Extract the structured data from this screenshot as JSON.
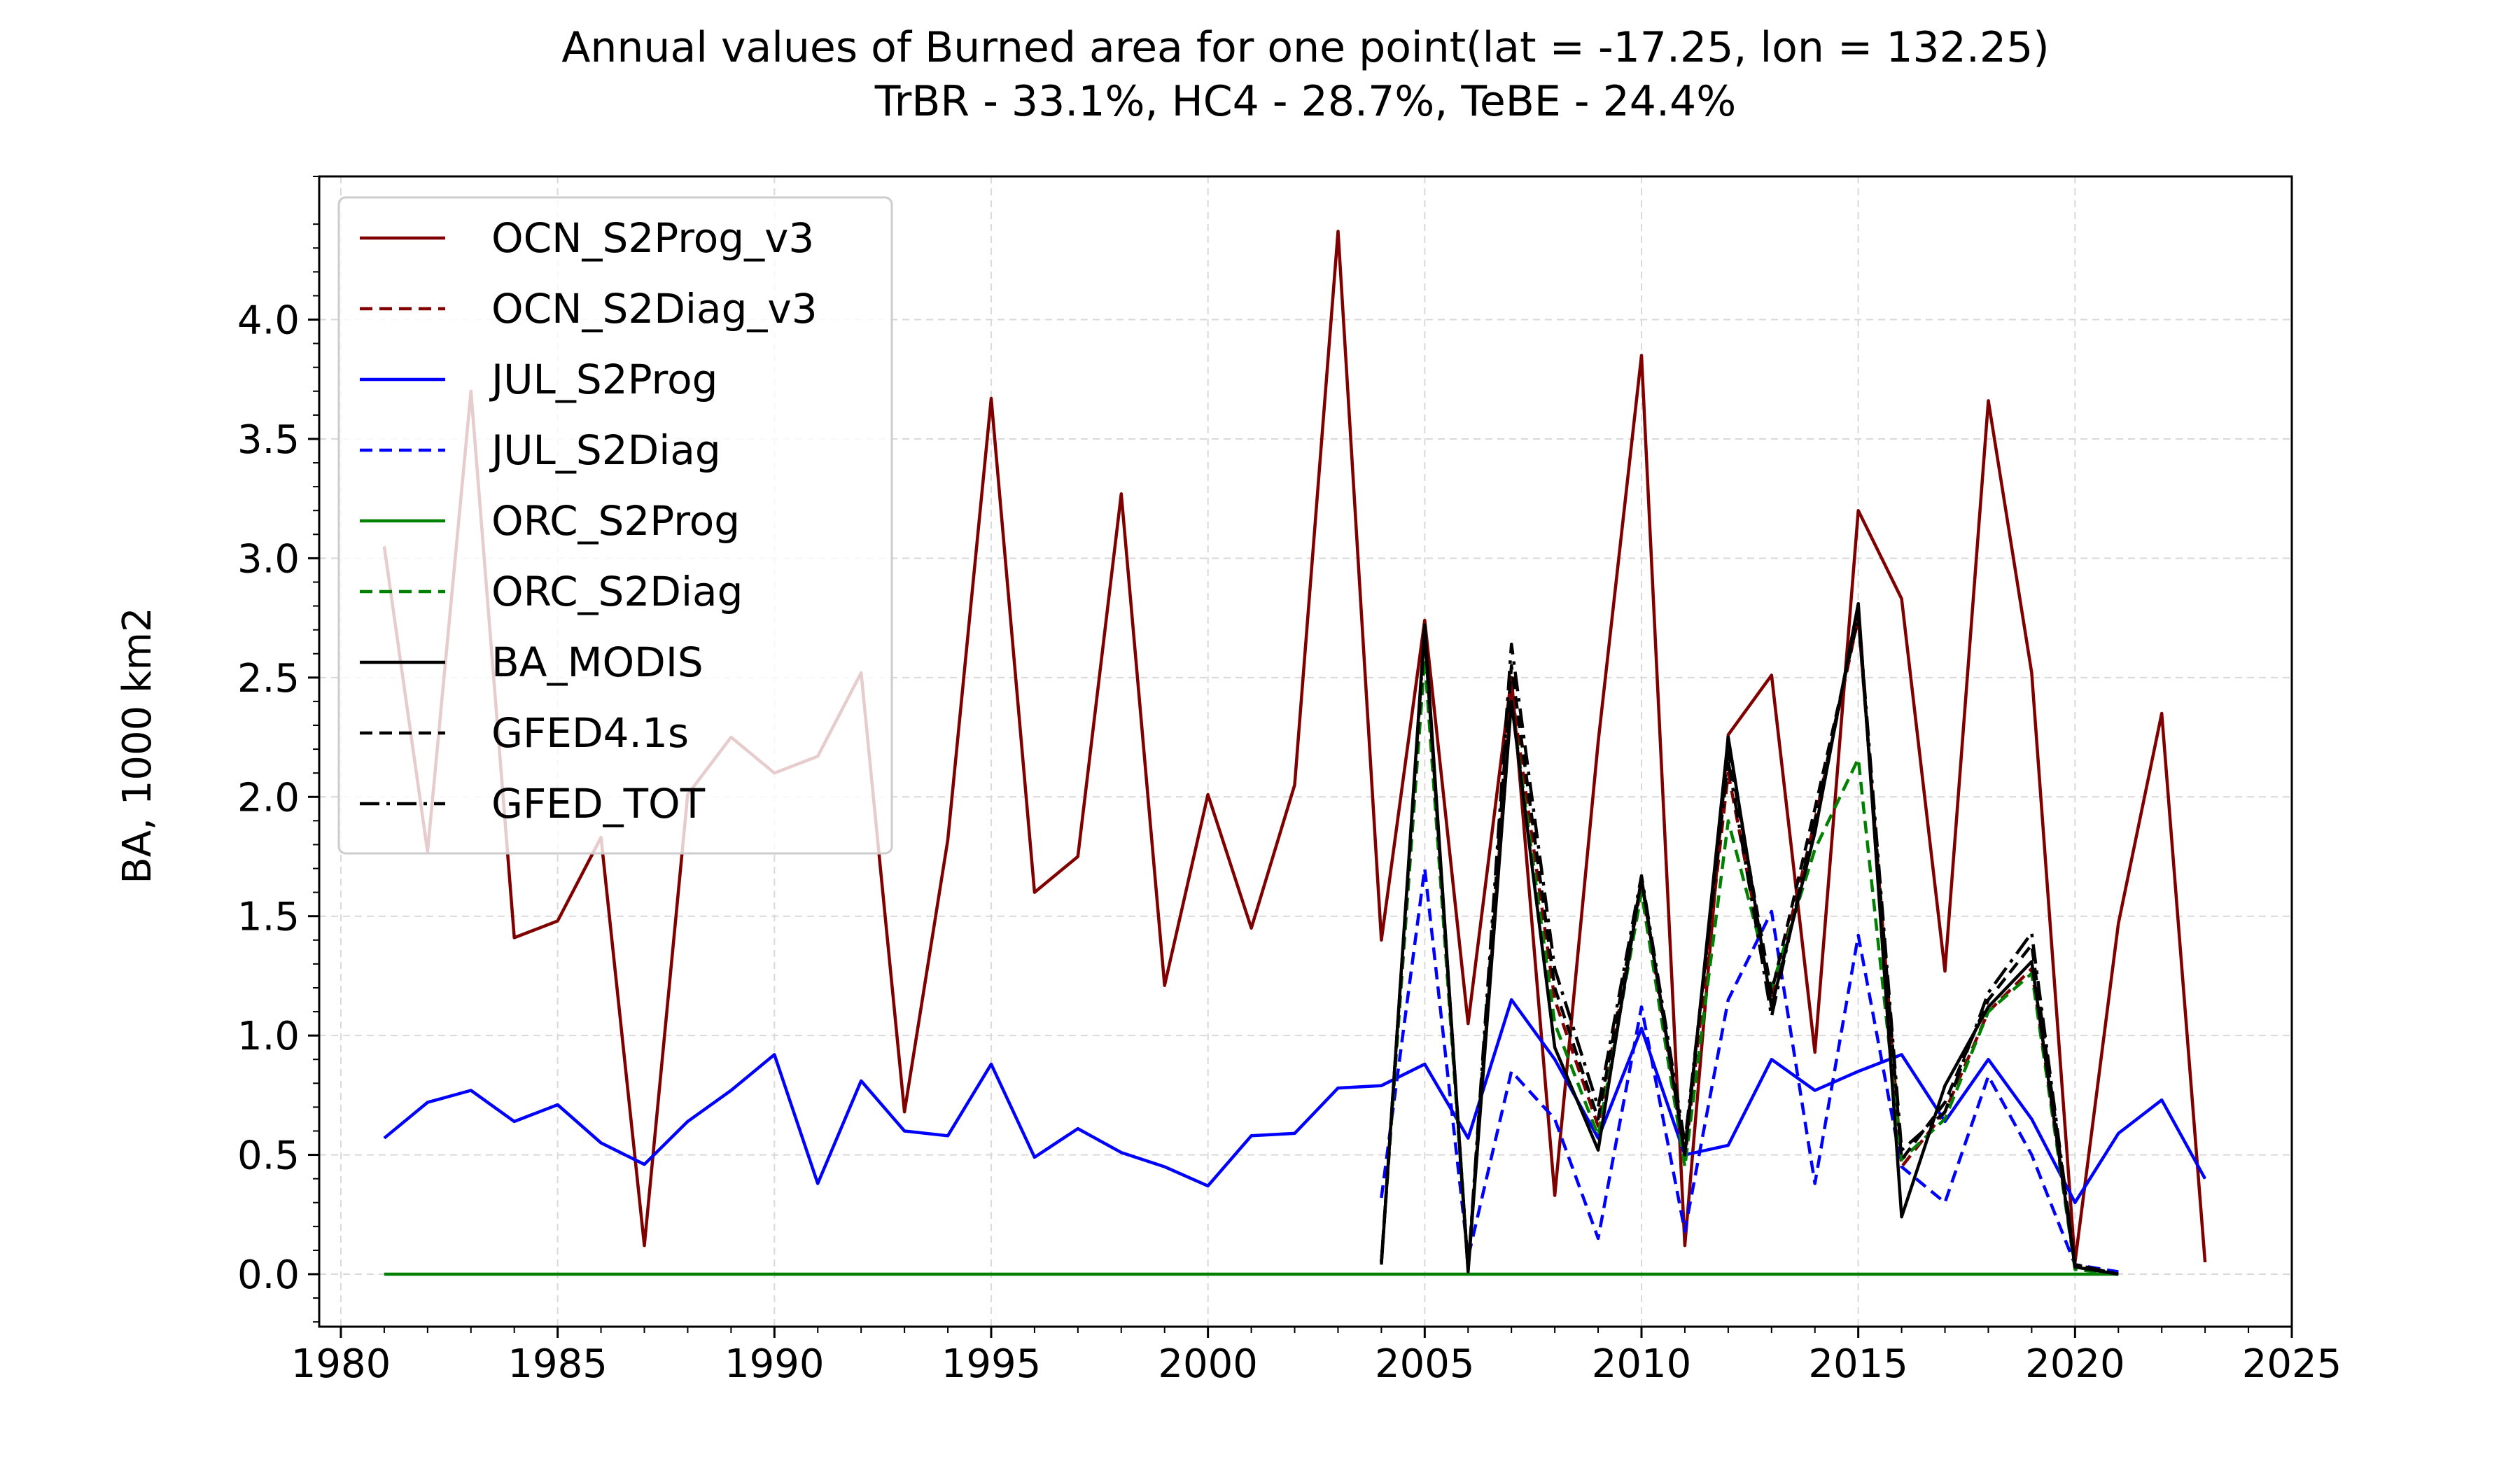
{
  "chart_data": {
    "type": "line",
    "title": "Annual values of Burned area for one point(lat = -17.25, lon = 132.25)",
    "subtitle": "TrBR - 33.1%, HC4  - 28.7%, TeBE - 24.4%",
    "xlabel": "",
    "ylabel": "BA, 1000 km2",
    "xlim": [
      1979.5,
      2025
    ],
    "ylim": [
      -0.22,
      4.6
    ],
    "xticks": [
      1980,
      1985,
      1990,
      1995,
      2000,
      2005,
      2010,
      2015,
      2020,
      2025
    ],
    "xtick_labels": [
      "1980",
      "1985",
      "1990",
      "1995",
      "2000",
      "2005",
      "2010",
      "2015",
      "2020",
      "2025"
    ],
    "yticks": [
      0.0,
      0.5,
      1.0,
      1.5,
      2.0,
      2.5,
      3.0,
      3.5,
      4.0
    ],
    "ytick_labels": [
      "0.0",
      "0.5",
      "1.0",
      "1.5",
      "2.0",
      "2.5",
      "3.0",
      "3.5",
      "4.0"
    ],
    "grid": true,
    "legend_position": "top-left",
    "series": [
      {
        "name": "OCN_S2Prog_v3",
        "color": "#800000",
        "style": "solid",
        "x": [
          1981,
          1982,
          1983,
          1984,
          1985,
          1986,
          1987,
          1988,
          1989,
          1990,
          1991,
          1992,
          1993,
          1994,
          1995,
          1996,
          1997,
          1998,
          1999,
          2000,
          2001,
          2002,
          2003,
          2004,
          2005,
          2006,
          2007,
          2008,
          2009,
          2010,
          2011,
          2012,
          2013,
          2014,
          2015,
          2016,
          2017,
          2018,
          2019,
          2020,
          2021,
          2022,
          2023
        ],
        "y": [
          3.05,
          1.77,
          3.7,
          1.41,
          1.48,
          1.83,
          0.12,
          2.01,
          2.25,
          2.1,
          2.17,
          2.52,
          0.68,
          1.82,
          3.67,
          1.6,
          1.75,
          3.27,
          1.21,
          2.01,
          1.45,
          2.05,
          4.37,
          1.4,
          2.74,
          1.05,
          2.5,
          0.33,
          2.23,
          3.85,
          0.12,
          2.26,
          2.51,
          0.93,
          3.2,
          2.83,
          1.27,
          3.66,
          2.52,
          0.05,
          1.47,
          2.35,
          0.05
        ]
      },
      {
        "name": "OCN_S2Diag_v3",
        "color": "#800000",
        "style": "dashed",
        "x": [
          2004,
          2005,
          2006,
          2007,
          2008,
          2009,
          2010,
          2011,
          2012,
          2013,
          2014,
          2015,
          2016,
          2017,
          2018,
          2019,
          2020,
          2021
        ],
        "y": [
          0.05,
          2.62,
          0.02,
          2.45,
          1.15,
          0.62,
          1.63,
          0.48,
          2.1,
          1.15,
          1.9,
          2.75,
          0.45,
          0.68,
          1.1,
          1.28,
          0.03,
          0.0
        ]
      },
      {
        "name": "JUL_S2Prog",
        "color": "#0000ff",
        "style": "solid",
        "x": [
          1981,
          1982,
          1983,
          1984,
          1985,
          1986,
          1987,
          1988,
          1989,
          1990,
          1991,
          1992,
          1993,
          1994,
          1995,
          1996,
          1997,
          1998,
          1999,
          2000,
          2001,
          2002,
          2003,
          2004,
          2005,
          2006,
          2007,
          2008,
          2009,
          2010,
          2011,
          2012,
          2013,
          2014,
          2015,
          2016,
          2017,
          2018,
          2019,
          2020,
          2021,
          2022,
          2023
        ],
        "y": [
          0.57,
          0.72,
          0.77,
          0.64,
          0.71,
          0.55,
          0.46,
          0.64,
          0.77,
          0.92,
          0.38,
          0.81,
          0.6,
          0.58,
          0.88,
          0.49,
          0.61,
          0.51,
          0.45,
          0.37,
          0.58,
          0.59,
          0.78,
          0.79,
          0.88,
          0.57,
          1.15,
          0.9,
          0.57,
          1.03,
          0.5,
          0.54,
          0.9,
          0.77,
          0.85,
          0.92,
          0.64,
          0.9,
          0.65,
          0.3,
          0.59,
          0.73,
          0.4
        ]
      },
      {
        "name": "JUL_S2Diag",
        "color": "#0000ff",
        "style": "dashed",
        "x": [
          2004,
          2005,
          2006,
          2007,
          2008,
          2009,
          2010,
          2011,
          2012,
          2013,
          2014,
          2015,
          2016,
          2017,
          2018,
          2019,
          2020,
          2021
        ],
        "y": [
          0.32,
          1.7,
          0.07,
          0.85,
          0.65,
          0.15,
          1.12,
          0.18,
          1.15,
          1.52,
          0.38,
          1.42,
          0.45,
          0.3,
          0.83,
          0.5,
          0.04,
          0.01
        ]
      },
      {
        "name": "ORC_S2Prog",
        "color": "#008000",
        "style": "solid",
        "x": [
          1981,
          2021
        ],
        "y": [
          0.0,
          0.0
        ]
      },
      {
        "name": "ORC_S2Diag",
        "color": "#008000",
        "style": "dashed",
        "x": [
          2004,
          2005,
          2006,
          2007,
          2008,
          2009,
          2010,
          2011,
          2012,
          2013,
          2014,
          2015,
          2016,
          2017,
          2018,
          2019,
          2020,
          2021
        ],
        "y": [
          0.05,
          2.58,
          0.02,
          2.4,
          1.05,
          0.58,
          1.6,
          0.45,
          1.9,
          1.2,
          1.78,
          2.16,
          0.48,
          0.65,
          1.1,
          1.26,
          0.02,
          0.0
        ]
      },
      {
        "name": "BA_MODIS",
        "color": "#000000",
        "style": "solid",
        "x": [
          2004,
          2005,
          2006,
          2007,
          2008,
          2009,
          2010,
          2011,
          2012,
          2013,
          2014,
          2015,
          2016,
          2017,
          2018,
          2019,
          2020,
          2021
        ],
        "y": [
          0.04,
          2.72,
          0.01,
          2.4,
          0.95,
          0.52,
          1.66,
          0.5,
          2.25,
          1.12,
          1.85,
          2.81,
          0.24,
          0.79,
          1.12,
          1.31,
          0.03,
          0.0
        ]
      },
      {
        "name": "GFED4.1s",
        "color": "#000000",
        "style": "dashed",
        "x": [
          2004,
          2005,
          2006,
          2007,
          2008,
          2009,
          2010,
          2011,
          2012,
          2013,
          2014,
          2015,
          2016,
          2017,
          2018,
          2019,
          2020,
          2021
        ],
        "y": [
          0.05,
          2.68,
          0.02,
          2.55,
          1.2,
          0.65,
          1.65,
          0.52,
          2.2,
          1.18,
          1.95,
          2.75,
          0.48,
          0.72,
          1.15,
          1.38,
          0.04,
          0.0
        ]
      },
      {
        "name": "GFED_TOT",
        "color": "#000000",
        "style": "dashdot",
        "x": [
          2004,
          2005,
          2006,
          2007,
          2008,
          2009,
          2010,
          2011,
          2012,
          2013,
          2014,
          2015,
          2016,
          2017,
          2018,
          2019,
          2020,
          2021
        ],
        "y": [
          0.05,
          2.7,
          0.02,
          2.64,
          1.28,
          0.7,
          1.67,
          0.55,
          2.15,
          1.08,
          1.9,
          2.78,
          0.52,
          0.68,
          1.18,
          1.43,
          0.04,
          0.0
        ]
      }
    ]
  }
}
